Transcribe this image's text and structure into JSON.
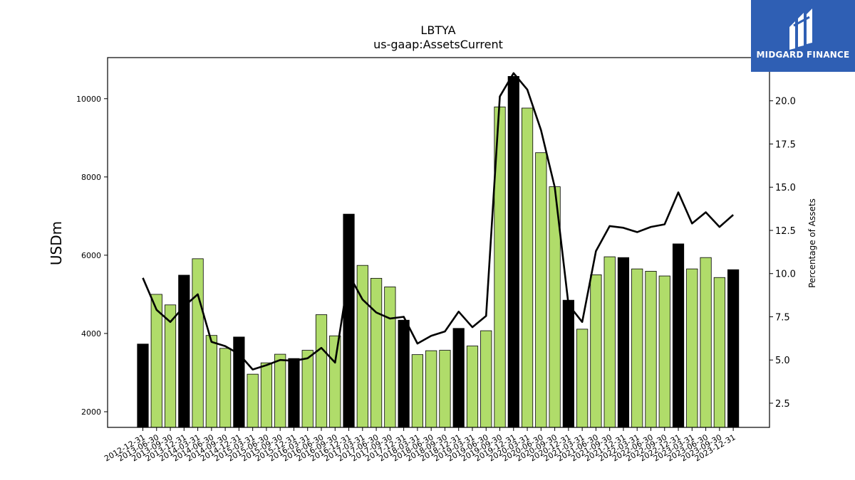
{
  "chart_data": {
    "type": "bar",
    "title": "LBTYA",
    "subtitle": "us-gaap:AssetsCurrent",
    "ylabel": "USDm",
    "y2label": "Percentage of Assets",
    "ylim": [
      1600,
      11050
    ],
    "y2lim": [
      1.1,
      22.5
    ],
    "yticks": [
      2000,
      4000,
      6000,
      8000,
      10000
    ],
    "y2ticks": [
      2.5,
      5.0,
      7.5,
      10.0,
      12.5,
      15.0,
      17.5,
      20.0
    ],
    "categories": [
      "2012-12-31",
      "2013-06-30",
      "2013-09-30",
      "2013-12-31",
      "2014-03-31",
      "2014-06-30",
      "2014-09-30",
      "2014-12-31",
      "2015-03-31",
      "2015-06-30",
      "2015-09-30",
      "2015-12-31",
      "2016-03-31",
      "2016-06-30",
      "2016-09-30",
      "2016-12-31",
      "2017-03-31",
      "2017-06-30",
      "2017-09-30",
      "2017-12-31",
      "2018-03-31",
      "2018-06-30",
      "2018-09-30",
      "2018-12-31",
      "2019-03-31",
      "2019-06-30",
      "2019-09-30",
      "2019-12-31",
      "2020-03-31",
      "2020-06-30",
      "2020-09-30",
      "2020-12-31",
      "2021-03-31",
      "2021-06-30",
      "2021-09-30",
      "2021-12-31",
      "2022-03-31",
      "2022-06-30",
      "2022-09-30",
      "2022-12-31",
      "2023-03-31",
      "2023-06-30",
      "2023-09-30",
      "2023-12-31"
    ],
    "series": [
      {
        "kind": "bar",
        "values": [
          3730,
          5000,
          4730,
          5490,
          5910,
          3950,
          3620,
          3910,
          2960,
          3250,
          3470,
          3360,
          3570,
          4480,
          3940,
          7050,
          5740,
          5410,
          5190,
          4340,
          3460,
          3560,
          3570,
          4130,
          3680,
          4070,
          9790,
          10570,
          9760,
          8620,
          7750,
          4850,
          4110,
          5500,
          5960,
          5940,
          5650,
          5590,
          5470,
          6290,
          5650,
          5940,
          5430,
          5630
        ],
        "highlight_color": "#000000",
        "normal_color": "#b0dc6a",
        "highlight_months": [
          "12"
        ]
      },
      {
        "kind": "line",
        "axis": "right",
        "color": "#000000",
        "values": [
          9.75,
          7.9,
          7.2,
          8.1,
          8.8,
          6.05,
          5.8,
          5.35,
          4.45,
          4.7,
          5.0,
          4.95,
          5.1,
          5.7,
          4.85,
          9.95,
          8.5,
          7.75,
          7.4,
          7.5,
          5.95,
          6.4,
          6.65,
          7.8,
          6.9,
          7.55,
          20.25,
          21.6,
          20.65,
          18.3,
          15.0,
          8.2,
          7.2,
          11.3,
          12.75,
          12.65,
          12.4,
          12.7,
          12.85,
          14.7,
          12.9,
          13.55,
          12.7,
          13.4
        ]
      }
    ]
  },
  "branding": {
    "logo_text": "MIDGARD FINANCE",
    "logo_icon": "midgard-m-icon",
    "logo_bg": "#2f5fb4"
  }
}
